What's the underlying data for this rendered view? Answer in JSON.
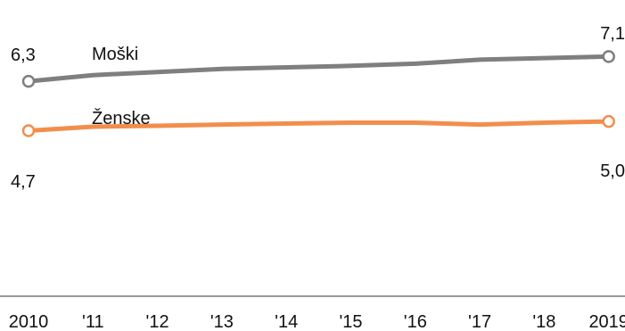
{
  "chart_data": {
    "type": "line",
    "title": "",
    "xlabel": "",
    "ylabel": "",
    "categories": [
      "2010",
      "'11",
      "'12",
      "'13",
      "'14",
      "'15",
      "'16",
      "'17",
      "'18",
      "2019"
    ],
    "ylim": [
      2.0,
      7.4
    ],
    "grid": false,
    "legend": "inline labels near lines",
    "series": [
      {
        "name": "Moški",
        "color": "#7f7f7f",
        "values": [
          6.3,
          6.5,
          6.6,
          6.7,
          6.75,
          6.8,
          6.87,
          7.0,
          7.05,
          7.1
        ],
        "start_label": "6,3",
        "end_label": "7,1"
      },
      {
        "name": "Ženske",
        "color": "#f28e4c",
        "values": [
          4.7,
          4.83,
          4.86,
          4.9,
          4.93,
          4.96,
          4.96,
          4.9,
          4.96,
          5.0
        ],
        "start_label": "4,7",
        "end_label": "5,0"
      }
    ]
  }
}
